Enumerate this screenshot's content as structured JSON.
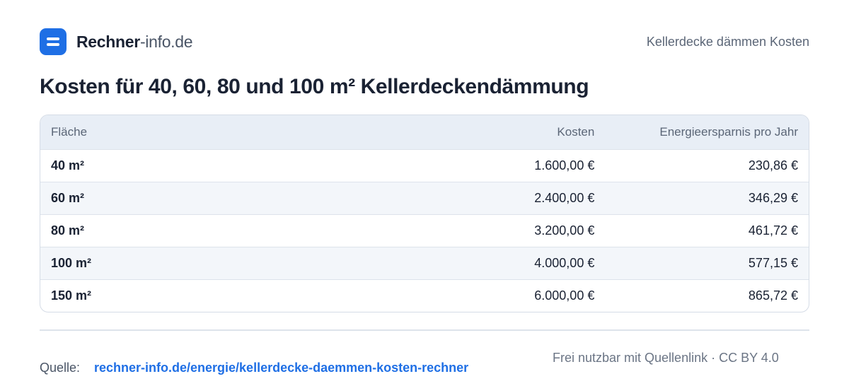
{
  "brand": {
    "name_bold": "Rechner",
    "name_rest": "-info.de"
  },
  "header": {
    "page_label": "Kellerdecke dämmen Kosten"
  },
  "title": "Kosten für 40, 60, 80 und 100 m² Kellerdeckendämmung",
  "table": {
    "columns": [
      "Fläche",
      "Kosten",
      "Energieersparnis pro Jahr"
    ],
    "rows": [
      [
        "40 m²",
        "1.600,00 €",
        "230,86 €"
      ],
      [
        "60 m²",
        "2.400,00 €",
        "346,29 €"
      ],
      [
        "80 m²",
        "3.200,00 €",
        "461,72 €"
      ],
      [
        "100 m²",
        "4.000,00 €",
        "577,15 €"
      ],
      [
        "150 m²",
        "6.000,00 €",
        "865,72 €"
      ]
    ]
  },
  "footer": {
    "source_label": "Quelle:",
    "source_link": "rechner-info.de/energie/kellerdecke-daemmen-kosten-rechner",
    "license": "Frei nutzbar mit Quellenlink · CC BY 4.0"
  },
  "colors": {
    "accent": "#1f6fe5",
    "header_bg": "#e8eef6",
    "row_alt_bg": "#f3f6fa",
    "border": "#d5dce6"
  },
  "icons": {
    "logo": "equals-logo-icon"
  }
}
